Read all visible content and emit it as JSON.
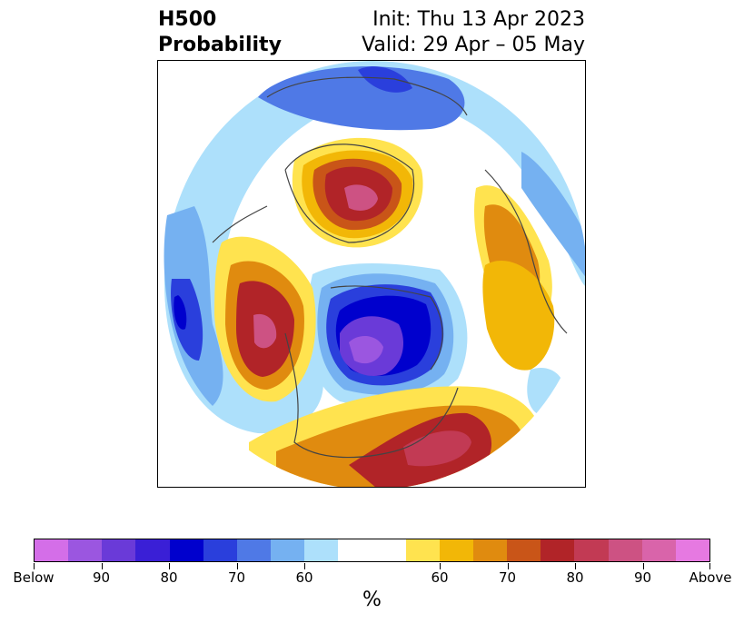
{
  "header": {
    "title_line1": "H500",
    "title_line2": "Probability",
    "init_label": "Init: Thu 13 Apr 2023",
    "valid_label": "Valid: 29 Apr – 05 May"
  },
  "map": {
    "projection": "north-polar-stereographic",
    "variable": "500 hPa height probability",
    "features": [
      {
        "kind": "below",
        "level": 90,
        "region": "central Canada / Hudson Bay"
      },
      {
        "kind": "above",
        "level": 80,
        "region": "Alaska / Bering Sea"
      },
      {
        "kind": "above",
        "level": 80,
        "region": "Greenland"
      },
      {
        "kind": "above",
        "level": 80,
        "region": "eastern Siberia"
      },
      {
        "kind": "above",
        "level": 70,
        "region": "western Russia / Urals"
      },
      {
        "kind": "below",
        "level": 70,
        "region": "north Atlantic / Europe"
      },
      {
        "kind": "below",
        "level": 80,
        "region": "north Pacific"
      }
    ]
  },
  "colorbar": {
    "colors": [
      "#d46ee8",
      "#9b56e0",
      "#6a3ad8",
      "#3a1fd6",
      "#0000cd",
      "#2a3fdc",
      "#4f79e6",
      "#75b1f1",
      "#ade0fb",
      "#ffffff",
      "#ffe34f",
      "#f2b707",
      "#e08b0f",
      "#c95518",
      "#b12428",
      "#c23a54",
      "#cd5283",
      "#d964aa",
      "#e679e1"
    ],
    "tick_labels": [
      "Below",
      "90",
      "80",
      "70",
      "60",
      "60",
      "70",
      "80",
      "90",
      "Above"
    ],
    "unit_label": "%"
  }
}
